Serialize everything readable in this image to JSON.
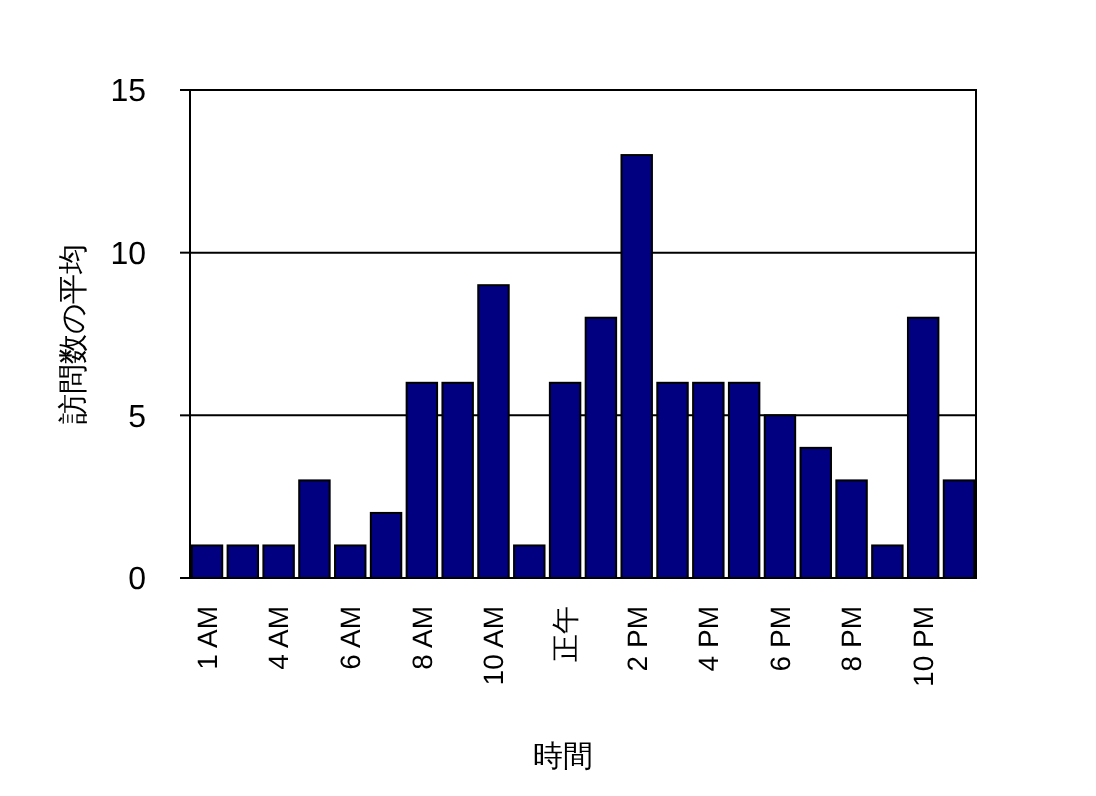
{
  "chart_data": {
    "type": "bar",
    "xlabel": "時間",
    "ylabel": "訪問数の平均",
    "categories": [
      "1 AM",
      null,
      "4 AM",
      null,
      "6 AM",
      null,
      "8 AM",
      null,
      "10 AM",
      null,
      "正午",
      null,
      "2 PM",
      null,
      "4 PM",
      null,
      "6 PM",
      null,
      "8 PM",
      null,
      "10 PM",
      null
    ],
    "values": [
      1,
      1,
      1,
      3,
      1,
      2,
      6,
      6,
      9,
      1,
      6,
      8,
      13,
      6,
      6,
      6,
      5,
      4,
      3,
      1,
      8,
      3
    ],
    "color": "#000080",
    "ylim": [
      0,
      15
    ],
    "yticks": [
      0,
      5,
      10,
      15
    ],
    "grid": "y"
  }
}
